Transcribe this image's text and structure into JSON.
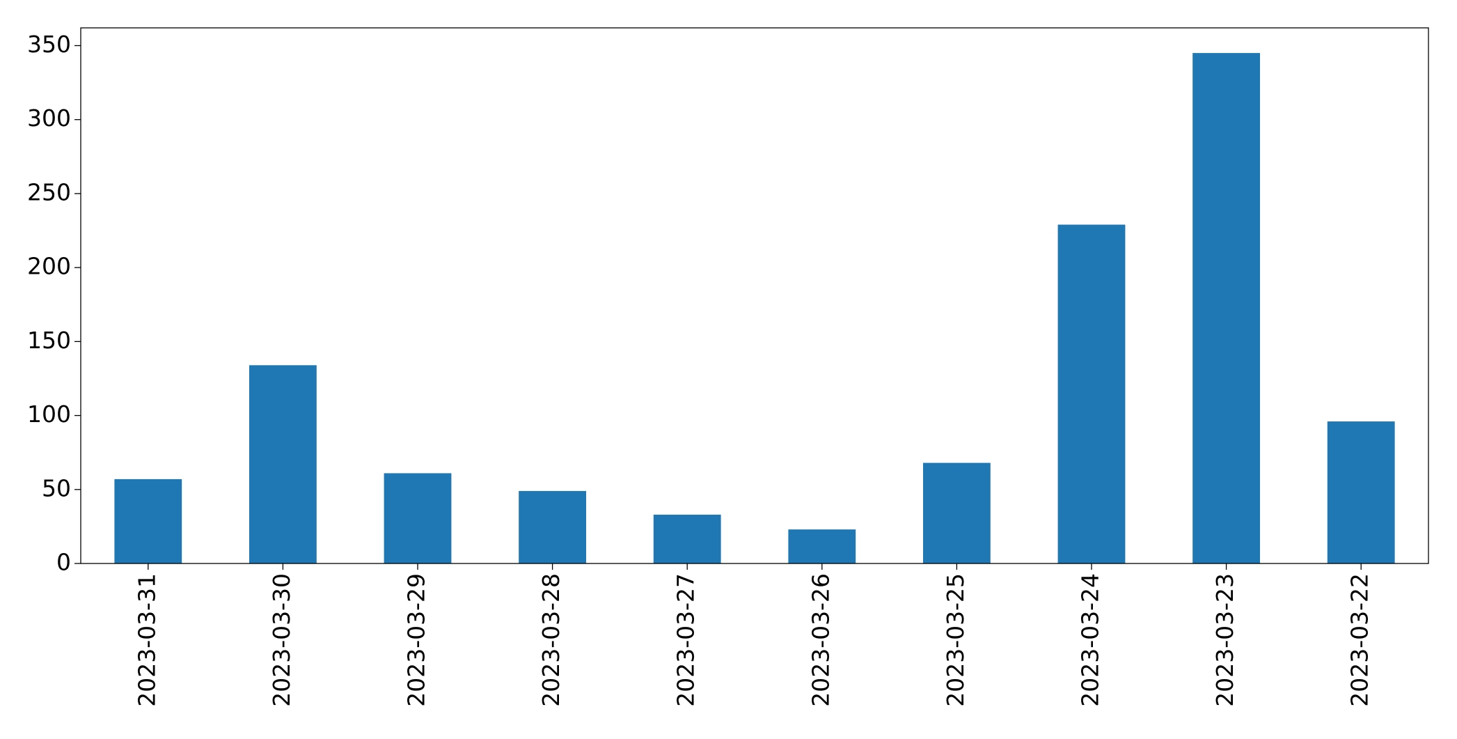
{
  "chart_data": {
    "type": "bar",
    "categories": [
      "2023-03-31",
      "2023-03-30",
      "2023-03-29",
      "2023-03-28",
      "2023-03-27",
      "2023-03-26",
      "2023-03-25",
      "2023-03-24",
      "2023-03-23",
      "2023-03-22"
    ],
    "values": [
      57,
      134,
      61,
      49,
      33,
      23,
      68,
      229,
      345,
      96
    ],
    "color": "#1f77b4",
    "ylim": [
      0,
      362
    ],
    "yticks": [
      0,
      50,
      100,
      150,
      200,
      250,
      300,
      350
    ],
    "grid": false
  }
}
